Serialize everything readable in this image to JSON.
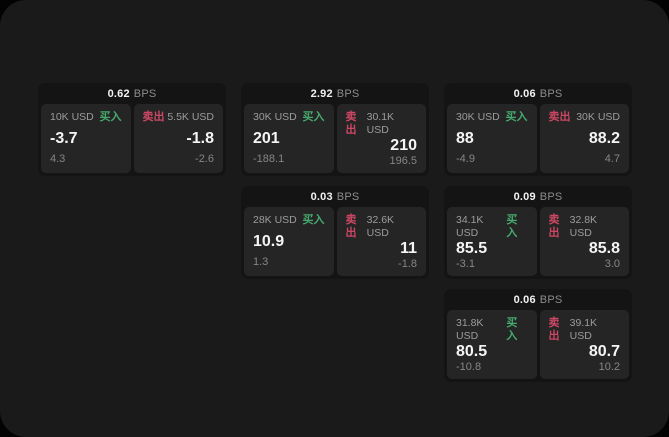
{
  "labels": {
    "bps_unit": "BPS",
    "buy": "买入",
    "sell": "卖出"
  },
  "colors": {
    "buy": "#46aa6e",
    "sell": "#cd4664",
    "window_background": "#1a1a1a",
    "card_background": "#141414",
    "panel_background": "#252525"
  },
  "cards": [
    {
      "bps": "0.62",
      "buy": {
        "amount": "10K USD",
        "price": "-3.7",
        "change": "4.3"
      },
      "sell": {
        "amount": "5.5K USD",
        "price": "-1.8",
        "change": "-2.6"
      }
    },
    {
      "bps": "2.92",
      "buy": {
        "amount": "30K USD",
        "price": "201",
        "change": "-188.1"
      },
      "sell": {
        "amount": "30.1K USD",
        "price": "210",
        "change": "196.5"
      }
    },
    {
      "bps": "0.06",
      "buy": {
        "amount": "30K USD",
        "price": "88",
        "change": "-4.9"
      },
      "sell": {
        "amount": "30K USD",
        "price": "88.2",
        "change": "4.7"
      }
    },
    {
      "bps": "0.03",
      "buy": {
        "amount": "28K USD",
        "price": "10.9",
        "change": "1.3"
      },
      "sell": {
        "amount": "32.6K USD",
        "price": "11",
        "change": "-1.8"
      }
    },
    {
      "bps": "0.09",
      "buy": {
        "amount": "34.1K USD",
        "price": "85.5",
        "change": "-3.1"
      },
      "sell": {
        "amount": "32.8K USD",
        "price": "85.8",
        "change": "3.0"
      }
    },
    {
      "bps": "0.06",
      "buy": {
        "amount": "31.8K USD",
        "price": "80.5",
        "change": "-10.8"
      },
      "sell": {
        "amount": "39.1K USD",
        "price": "80.7",
        "change": "10.2"
      }
    }
  ]
}
